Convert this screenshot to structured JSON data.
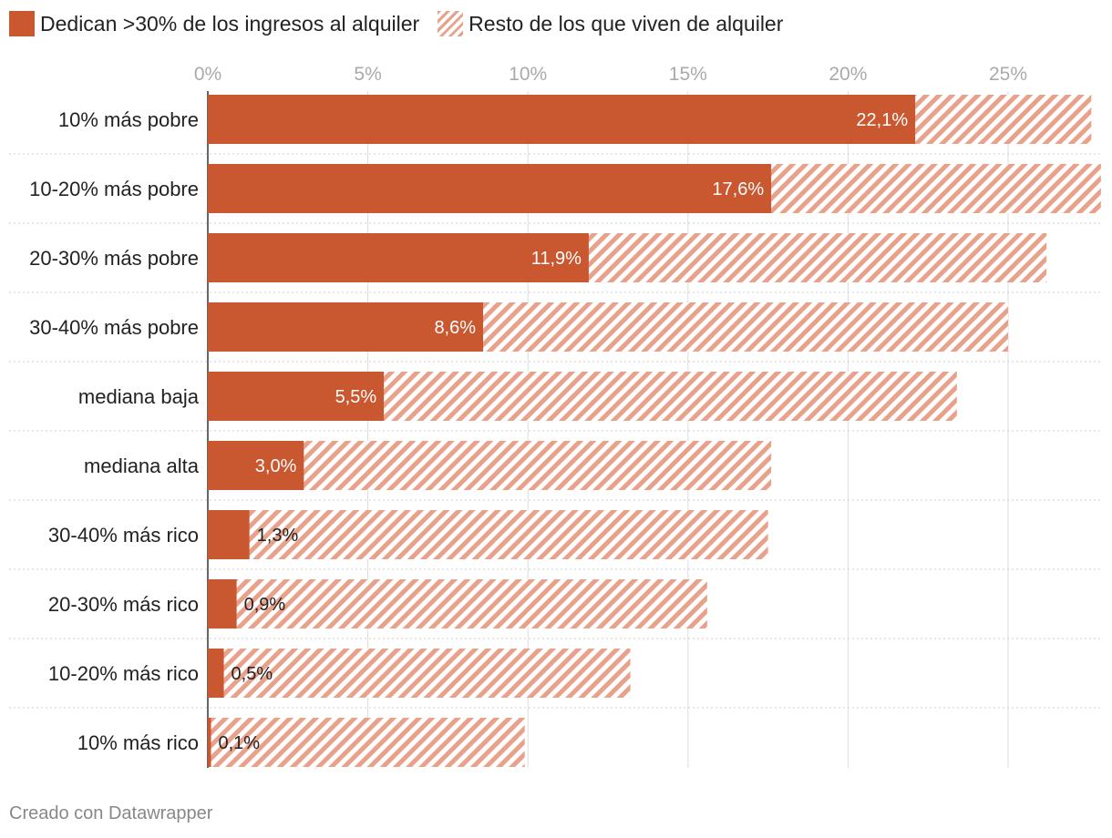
{
  "legend": {
    "primary": "Dedican >30% de los ingresos al alquiler",
    "secondary": "Resto de los que viven de alquiler"
  },
  "colors": {
    "primary": "#c9572f",
    "secondary": "#e8a18a",
    "grid": "#dddddd",
    "axis_text": "#aaaaaa"
  },
  "chart_data": {
    "type": "bar",
    "orientation": "horizontal",
    "stacked": true,
    "categories": [
      "10% más pobre",
      "10-20% más pobre",
      "20-30% más pobre",
      "30-40% más pobre",
      "mediana baja",
      "mediana alta",
      "30-40% más rico",
      "20-30% más rico",
      "10-20% más rico",
      "10% más rico"
    ],
    "series": [
      {
        "name": "Dedican >30% de los ingresos al alquiler",
        "values": [
          22.1,
          17.6,
          11.9,
          8.6,
          5.5,
          3.0,
          1.3,
          0.9,
          0.5,
          0.1
        ]
      },
      {
        "name": "Resto de los que viven de alquiler",
        "values": [
          5.5,
          10.3,
          14.3,
          16.4,
          17.9,
          14.6,
          16.2,
          14.7,
          12.7,
          9.8
        ]
      }
    ],
    "value_labels": [
      "22,1%",
      "17,6%",
      "11,9%",
      "8,6%",
      "5,5%",
      "3,0%",
      "1,3%",
      "0,9%",
      "0,5%",
      "0,1%"
    ],
    "x_ticks": [
      0,
      5,
      10,
      15,
      20,
      25
    ],
    "x_tick_labels": [
      "0%",
      "5%",
      "10%",
      "15%",
      "20%",
      "25%"
    ],
    "xlim": [
      0,
      27.9
    ],
    "legend_position": "top-left"
  },
  "footer": {
    "credit": "Creado con Datawrapper"
  }
}
